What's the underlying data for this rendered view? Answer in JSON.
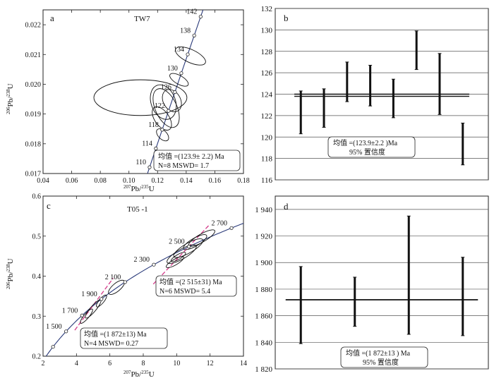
{
  "chart_data": [
    {
      "id": "a",
      "type": "scatter",
      "panel_label": "a",
      "sample": "TW7",
      "xlabel_sup": "207",
      "xlabel_main": "Pb/",
      "xlabel_sup2": "235",
      "xlabel_end": "U",
      "ylabel_sup": "206",
      "ylabel_main": "Pb/",
      "ylabel_sup2": "238",
      "ylabel_end": "U",
      "xlim": [
        0.04,
        0.18
      ],
      "ylim": [
        0.017,
        0.0225
      ],
      "x_ticks": [
        0.04,
        0.06,
        0.08,
        0.1,
        0.12,
        0.14,
        0.16,
        0.18
      ],
      "x_tick_labels": [
        "0.04",
        "0.06",
        "0.08",
        "0.10",
        "0.12",
        "0.14",
        "0.16",
        "0.18"
      ],
      "y_ticks": [
        0.017,
        0.018,
        0.019,
        0.02,
        0.021,
        0.022
      ],
      "y_tick_labels": [
        "0.017",
        "0.018",
        "0.019",
        "0.020",
        "0.021",
        "0.022"
      ],
      "concordia_ages_ma": [
        110,
        114,
        118,
        122,
        126,
        130,
        134,
        138,
        142
      ],
      "concordia_labels": [
        "110",
        "114",
        "118",
        "122",
        "126",
        "130",
        "134",
        "138",
        "142"
      ],
      "ellipses": [
        {
          "x": 0.108,
          "y": 0.01955,
          "rx": 0.0325,
          "ry": 0.0006,
          "angle": 0
        },
        {
          "x": 0.124,
          "y": 0.0194,
          "rx": 0.0085,
          "ry": 0.0006,
          "angle": 20
        },
        {
          "x": 0.126,
          "y": 0.0192,
          "rx": 0.0075,
          "ry": 0.0007,
          "angle": 25
        },
        {
          "x": 0.123,
          "y": 0.01885,
          "rx": 0.005,
          "ry": 0.00045,
          "angle": 35
        },
        {
          "x": 0.13,
          "y": 0.01945,
          "rx": 0.006,
          "ry": 0.0004,
          "angle": 30
        },
        {
          "x": 0.135,
          "y": 0.02015,
          "rx": 0.003,
          "ry": 0.00035,
          "angle": 60
        },
        {
          "x": 0.143,
          "y": 0.02095,
          "rx": 0.0045,
          "ry": 0.00055,
          "angle": 65
        },
        {
          "x": 0.1235,
          "y": 0.0183,
          "rx": 0.003,
          "ry": 0.00025,
          "angle": 45
        }
      ],
      "stats_lines": [
        "均值 =(123.9± 2.2) Ma",
        "N=8   MSWD= 1.7"
      ]
    },
    {
      "id": "b",
      "type": "bar",
      "panel_label": "b",
      "ylim": [
        116,
        132
      ],
      "y_ticks": [
        116,
        118,
        120,
        122,
        124,
        126,
        128,
        130,
        132
      ],
      "y_tick_labels": [
        "116",
        "118",
        "120",
        "122",
        "124",
        "126",
        "128",
        "130",
        "132"
      ],
      "error_bars": [
        {
          "low": 120.3,
          "high": 124.3
        },
        {
          "low": 120.9,
          "high": 124.5
        },
        {
          "low": 123.3,
          "high": 127.0
        },
        {
          "low": 122.9,
          "high": 126.7
        },
        {
          "low": 121.8,
          "high": 125.4
        },
        {
          "low": 126.3,
          "high": 129.9
        },
        {
          "low": 122.1,
          "high": 127.8
        },
        {
          "low": 117.4,
          "high": 121.3
        }
      ],
      "mean": 123.9,
      "band": [
        123.8,
        124.0
      ],
      "stats_lines": [
        "均值 =(123.9±2.2 )Ma",
        "95% 置信度"
      ]
    },
    {
      "id": "c",
      "type": "scatter",
      "panel_label": "c",
      "sample": "T05 -1",
      "xlabel_sup": "207",
      "xlabel_main": "Pb/",
      "xlabel_sup2": "235",
      "xlabel_end": "U",
      "ylabel_sup": "206",
      "ylabel_main": "Pb/",
      "ylabel_sup2": "238",
      "ylabel_end": "U",
      "xlim": [
        2,
        14
      ],
      "ylim": [
        0.2,
        0.6
      ],
      "x_ticks": [
        2,
        4,
        6,
        8,
        10,
        12,
        14
      ],
      "x_tick_labels": [
        "2",
        "4",
        "6",
        "8",
        "10",
        "12",
        "14"
      ],
      "y_ticks": [
        0.2,
        0.3,
        0.4,
        0.5,
        0.6
      ],
      "y_tick_labels": [
        "0.2",
        "0.3",
        "0.4",
        "0.5",
        "0.6"
      ],
      "concordia_ages_ma": [
        1100,
        1300,
        1500,
        1700,
        1900,
        2100,
        2300,
        2500,
        2700,
        2900
      ],
      "concordia_labels": [
        {
          "age": 1500,
          "text": "1 500"
        },
        {
          "age": 1700,
          "text": "1 700"
        },
        {
          "age": 1900,
          "text": "1 900"
        },
        {
          "age": 2100,
          "text": "2 100"
        },
        {
          "age": 2300,
          "text": "2 300"
        },
        {
          "age": 2500,
          "text": "2 500"
        },
        {
          "age": 2700,
          "text": "2 700"
        }
      ],
      "discordia_lines": [
        {
          "x1": 3.9,
          "y1": 0.265,
          "x2": 6.2,
          "y2": 0.395
        },
        {
          "x1": 8.6,
          "y1": 0.38,
          "x2": 12.0,
          "y2": 0.53
        }
      ],
      "ellipses": [
        {
          "x": 4.6,
          "y": 0.3,
          "rx": 0.55,
          "ry": 0.006,
          "angle": 50
        },
        {
          "x": 5.0,
          "y": 0.318,
          "rx": 0.7,
          "ry": 0.007,
          "angle": 50
        },
        {
          "x": 5.5,
          "y": 0.338,
          "rx": 0.45,
          "ry": 0.006,
          "angle": 50
        },
        {
          "x": 6.4,
          "y": 0.372,
          "rx": 0.6,
          "ry": 0.01,
          "angle": 40
        },
        {
          "x": 9.9,
          "y": 0.435,
          "rx": 0.6,
          "ry": 0.007,
          "angle": 30
        },
        {
          "x": 10.3,
          "y": 0.455,
          "rx": 1.0,
          "ry": 0.012,
          "angle": 30
        },
        {
          "x": 10.7,
          "y": 0.47,
          "rx": 1.0,
          "ry": 0.012,
          "angle": 30
        },
        {
          "x": 11.1,
          "y": 0.485,
          "rx": 0.8,
          "ry": 0.01,
          "angle": 30
        },
        {
          "x": 11.5,
          "y": 0.495,
          "rx": 0.9,
          "ry": 0.01,
          "angle": 30
        },
        {
          "x": 10.1,
          "y": 0.448,
          "rx": 0.5,
          "ry": 0.006,
          "angle": 30
        }
      ],
      "stats_boxes": [
        {
          "lines": [
            "均值 =(2 515±31) Ma",
            "N=6   MSWD= 5.4"
          ]
        },
        {
          "lines": [
            "均值  =(1 872±13) Ma",
            "N=4   MSWD= 0.27"
          ]
        }
      ]
    },
    {
      "id": "d",
      "type": "bar",
      "panel_label": "d",
      "ylim": [
        1820,
        1950
      ],
      "y_ticks": [
        1820,
        1840,
        1860,
        1880,
        1900,
        1920,
        1940
      ],
      "y_tick_labels": [
        "1 820",
        "1 840",
        "1 860",
        "1 880",
        "1 900",
        "1 920",
        "1 940"
      ],
      "error_bars": [
        {
          "low": 1839,
          "high": 1897
        },
        {
          "low": 1852,
          "high": 1889
        },
        {
          "low": 1846,
          "high": 1935
        },
        {
          "low": 1845,
          "high": 1904
        }
      ],
      "mean": 1872,
      "band": [
        1872,
        1872
      ],
      "stats_lines": [
        "均值 =(1 872±13 ) Ma",
        "95% 置信度"
      ]
    }
  ]
}
